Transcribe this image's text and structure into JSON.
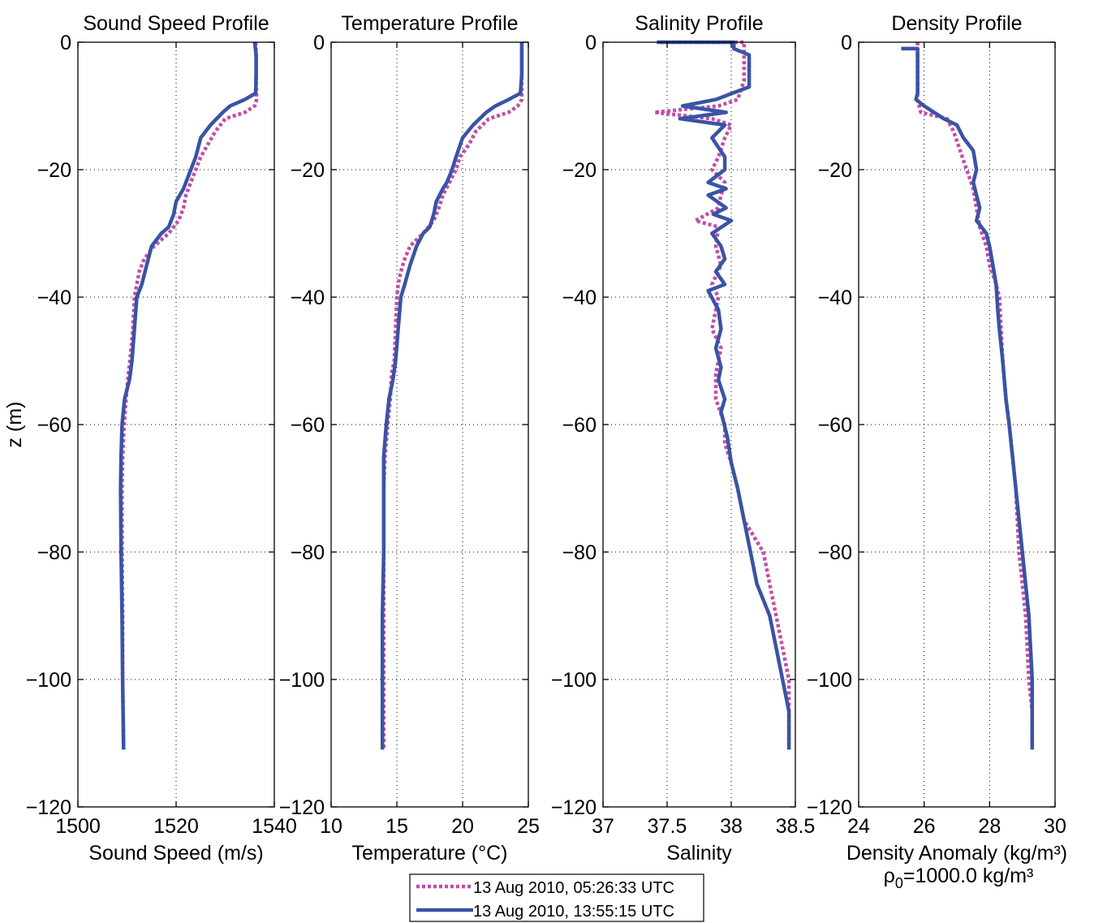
{
  "figure": {
    "ylabel": "z (m)",
    "density_note": "ρ",
    "density_note_sub": "0",
    "density_note_rest": "=1000.0 kg/m³",
    "legend": [
      {
        "label": "13 Aug 2010, 05:26:33 UTC",
        "color": "#c04fa8",
        "style": "dotted"
      },
      {
        "label": "13 Aug 2010, 13:55:15 UTC",
        "color": "#3a53a4",
        "style": "solid"
      }
    ]
  },
  "chart_data": [
    {
      "type": "line",
      "title": "Sound Speed Profile",
      "xlabel": "Sound Speed (m/s)",
      "ylabel": "z (m)",
      "xlim": [
        1500,
        1540
      ],
      "ylim": [
        -120,
        0
      ],
      "xticks": [
        1500,
        1520,
        1540
      ],
      "yticks": [
        0,
        -20,
        -40,
        -60,
        -80,
        -100,
        -120
      ],
      "grid": true,
      "series": [
        {
          "name": "13 Aug 2010, 05:26:33 UTC",
          "x": [
            1536.2,
            1536.3,
            1536.3,
            1536.4,
            1536.0,
            1534.0,
            1530.0,
            1528.0,
            1526.5,
            1525.0,
            1524.0,
            1523.0,
            1522.0,
            1521.5,
            1520.5,
            1518.5,
            1515.5,
            1513.5,
            1512.5,
            1512.0,
            1511.5,
            1511.2,
            1510.6,
            1510.3,
            1509.8,
            1509.4,
            1509.1,
            1509.0,
            1509.0,
            1509.1,
            1509.1,
            1509.2,
            1509.3
          ],
          "y": [
            0,
            -3,
            -6,
            -9,
            -10,
            -11,
            -12,
            -14,
            -16,
            -18,
            -20,
            -22,
            -24,
            -26,
            -28,
            -30,
            -32,
            -34,
            -36,
            -38,
            -40,
            -45,
            -50,
            -52,
            -56,
            -60,
            -65,
            -70,
            -80,
            -90,
            -100,
            -105,
            -111
          ]
        },
        {
          "name": "13 Aug 2010, 13:55:15 UTC",
          "x": [
            1536.0,
            1536.3,
            1536.3,
            1536.2,
            1534.0,
            1531.0,
            1529.5,
            1527.0,
            1525.0,
            1524.0,
            1523.0,
            1522.0,
            1521.5,
            1520.0,
            1519.5,
            1518.5,
            1517.0,
            1515.0,
            1514.0,
            1513.0,
            1512.0,
            1511.5,
            1511.0,
            1510.5,
            1509.5,
            1509.0,
            1508.8,
            1508.7,
            1508.8,
            1509.0,
            1509.1,
            1509.3
          ],
          "y": [
            0,
            -2,
            -5,
            -8,
            -9,
            -10,
            -11,
            -13,
            -15,
            -18,
            -20,
            -22,
            -23,
            -25,
            -27,
            -29,
            -30,
            -32,
            -35,
            -38,
            -40,
            -45,
            -50,
            -53,
            -56,
            -60,
            -65,
            -70,
            -80,
            -90,
            -100,
            -111
          ]
        }
      ]
    },
    {
      "type": "line",
      "title": "Temperature Profile",
      "xlabel": "Temperature (°C)",
      "ylabel": "",
      "xlim": [
        10,
        25
      ],
      "ylim": [
        -120,
        0
      ],
      "xticks": [
        10,
        15,
        20,
        25
      ],
      "yticks": [
        0,
        -20,
        -40,
        -60,
        -80,
        -100,
        -120
      ],
      "grid": true,
      "series": [
        {
          "name": "13 Aug 2010, 05:26:33 UTC",
          "x": [
            24.5,
            24.5,
            24.5,
            24.5,
            24.2,
            23.5,
            22.0,
            21.0,
            20.5,
            19.8,
            19.5,
            19.0,
            18.5,
            18.2,
            17.8,
            17.0,
            16.0,
            15.6,
            15.3,
            15.1,
            15.0,
            14.9,
            14.8,
            14.6,
            14.5,
            14.3,
            14.1,
            14.0,
            14.0,
            14.0,
            14.0,
            14.0,
            14.0
          ],
          "y": [
            0,
            -3,
            -6,
            -9,
            -10,
            -11,
            -12,
            -14,
            -16,
            -18,
            -20,
            -22,
            -24,
            -26,
            -28,
            -30,
            -32,
            -34,
            -36,
            -38,
            -40,
            -45,
            -50,
            -52,
            -56,
            -60,
            -65,
            -70,
            -80,
            -90,
            -100,
            -105,
            -111
          ]
        },
        {
          "name": "13 Aug 2010, 13:55:15 UTC",
          "x": [
            24.5,
            24.5,
            24.5,
            24.4,
            23.5,
            22.5,
            21.8,
            20.8,
            20.0,
            19.5,
            19.2,
            18.8,
            18.5,
            18.0,
            17.8,
            17.5,
            17.0,
            16.5,
            16.0,
            15.6,
            15.3,
            15.1,
            14.9,
            14.7,
            14.4,
            14.2,
            14.0,
            14.0,
            14.0,
            13.9,
            13.9,
            13.9
          ],
          "y": [
            0,
            -2,
            -5,
            -8,
            -9,
            -10,
            -11,
            -13,
            -15,
            -18,
            -20,
            -22,
            -23,
            -25,
            -27,
            -29,
            -30,
            -32,
            -35,
            -38,
            -40,
            -45,
            -50,
            -53,
            -56,
            -60,
            -65,
            -70,
            -80,
            -90,
            -100,
            -111
          ]
        }
      ]
    },
    {
      "type": "line",
      "title": "Salinity Profile",
      "xlabel": "Salinity",
      "ylabel": "",
      "xlim": [
        37,
        38.5
      ],
      "ylim": [
        -120,
        0
      ],
      "xticks": [
        37,
        37.5,
        38,
        38.5
      ],
      "yticks": [
        0,
        -20,
        -40,
        -60,
        -80,
        -100,
        -120
      ],
      "grid": true,
      "series": [
        {
          "name": "13 Aug 2010, 05:26:33 UTC",
          "x": [
            37.45,
            38.1,
            38.1,
            38.1,
            38.05,
            37.9,
            37.4,
            37.85,
            38.0,
            37.95,
            37.9,
            37.85,
            37.95,
            37.92,
            37.9,
            37.72,
            37.9,
            37.88,
            37.92,
            37.85,
            37.9,
            37.88,
            37.85,
            37.92,
            37.88,
            37.88,
            37.95,
            37.95,
            38.0,
            38.05,
            38.1,
            38.25,
            38.3,
            38.35,
            38.4,
            38.45,
            38.45
          ],
          "y": [
            0,
            0,
            -3,
            -6,
            -9,
            -10,
            -11,
            -12,
            -13,
            -15,
            -18,
            -20,
            -22,
            -24,
            -26,
            -28,
            -29,
            -32,
            -35,
            -38,
            -40,
            -42,
            -45,
            -48,
            -52,
            -56,
            -60,
            -63,
            -66,
            -70,
            -75,
            -80,
            -85,
            -90,
            -95,
            -100,
            -111
          ]
        },
        {
          "name": "13 Aug 2010, 13:55:15 UTC",
          "x": [
            37.42,
            38.02,
            38.02,
            38.14,
            38.14,
            37.88,
            37.62,
            37.96,
            37.6,
            37.95,
            37.85,
            37.95,
            37.95,
            37.82,
            37.96,
            37.82,
            37.96,
            37.86,
            38.0,
            37.85,
            37.92,
            37.95,
            37.88,
            37.95,
            37.82,
            37.9,
            37.92,
            37.88,
            37.92,
            37.9,
            37.95,
            37.92,
            37.97,
            38.0,
            38.05,
            38.1,
            38.15,
            38.2,
            38.3,
            38.35,
            38.4,
            38.45,
            38.45
          ],
          "y": [
            0,
            0,
            -1,
            -2,
            -7,
            -9,
            -10,
            -11,
            -12,
            -13,
            -15,
            -18,
            -20,
            -22,
            -23,
            -24,
            -26,
            -27,
            -28,
            -30,
            -32,
            -34,
            -36,
            -38,
            -39,
            -42,
            -45,
            -48,
            -51,
            -53,
            -56,
            -58,
            -62,
            -66,
            -70,
            -75,
            -80,
            -85,
            -90,
            -95,
            -100,
            -105,
            -111
          ]
        }
      ]
    },
    {
      "type": "line",
      "title": "Density Profile",
      "xlabel": "Density Anomaly (kg/m³)",
      "ylabel": "",
      "xlim": [
        24,
        30
      ],
      "ylim": [
        -120,
        0
      ],
      "xticks": [
        24,
        26,
        28,
        30
      ],
      "yticks": [
        0,
        -20,
        -40,
        -60,
        -80,
        -100,
        -120
      ],
      "grid": true,
      "series": [
        {
          "name": "13 Aug 2010, 05:26:33 UTC",
          "x": [
            25.8,
            25.8,
            25.8,
            25.8,
            25.85,
            25.9,
            26.7,
            26.9,
            27.1,
            27.3,
            27.5,
            27.6,
            27.7,
            27.9,
            28.0,
            28.2,
            28.3,
            28.35,
            28.4,
            28.5,
            28.6,
            28.7,
            28.8,
            28.9,
            29.0,
            29.1,
            29.2,
            29.3,
            29.3
          ],
          "y": [
            0,
            -3,
            -6,
            -9,
            -10,
            -11,
            -12,
            -14,
            -17,
            -20,
            -23,
            -26,
            -29,
            -32,
            -35,
            -38,
            -40,
            -45,
            -50,
            -56,
            -60,
            -65,
            -70,
            -80,
            -85,
            -90,
            -100,
            -105,
            -111
          ]
        },
        {
          "name": "13 Aug 2010, 13:55:15 UTC",
          "x": [
            25.3,
            25.8,
            25.8,
            25.8,
            25.8,
            25.75,
            26.0,
            26.6,
            27.0,
            27.2,
            27.5,
            27.6,
            27.5,
            27.6,
            27.7,
            27.6,
            27.9,
            28.0,
            28.1,
            28.2,
            28.25,
            28.3,
            28.4,
            28.5,
            28.6,
            28.7,
            28.8,
            29.0,
            29.1,
            29.2,
            29.3,
            29.3
          ],
          "y": [
            -1,
            -1,
            -1,
            -5,
            -8,
            -9,
            -10,
            -12,
            -13,
            -15,
            -17,
            -20,
            -22,
            -24,
            -26,
            -28,
            -30,
            -32,
            -35,
            -38,
            -42,
            -45,
            -50,
            -56,
            -60,
            -65,
            -70,
            -80,
            -85,
            -90,
            -100,
            -111
          ]
        }
      ]
    }
  ]
}
